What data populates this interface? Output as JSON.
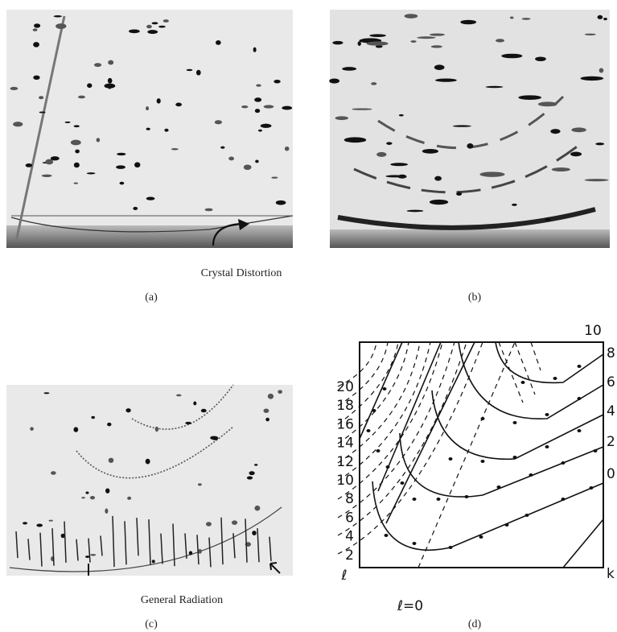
{
  "panels": [
    {
      "label": "(a)",
      "annotation": "Crystal Distortion"
    },
    {
      "label": "(b)"
    },
    {
      "label": "(c)",
      "annotation": "General Radiation"
    },
    {
      "label": "(d)",
      "left_labels": [
        "20",
        "18",
        "16",
        "14",
        "12",
        "10",
        "8",
        "6",
        "4",
        "2"
      ],
      "left_axis": "ℓ",
      "bottom_label": "ℓ=0",
      "right_labels": [
        "10",
        "8",
        "6",
        "4",
        "2",
        "0"
      ],
      "right_axis": "k"
    }
  ]
}
